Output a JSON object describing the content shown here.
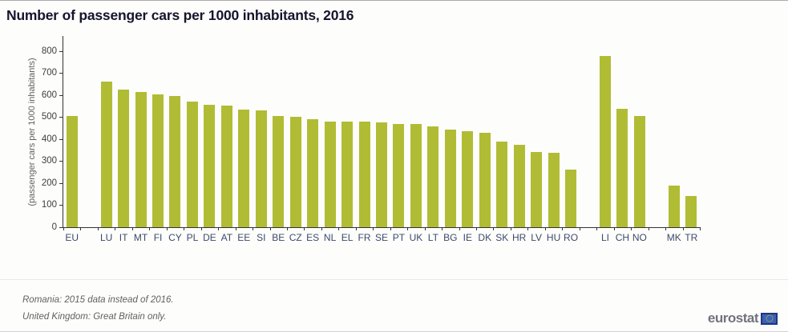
{
  "title": "Number of passenger cars per 1000 inhabitants, 2016",
  "chart_data": {
    "type": "bar",
    "title": "Number of passenger cars per 1000 inhabitants, 2016",
    "xlabel": "",
    "ylabel": "(passenger cars per 1000 inhabitants)",
    "ylim": [
      0,
      800
    ],
    "ytick_interval": 100,
    "yticks": [
      0,
      100,
      200,
      300,
      400,
      500,
      600,
      700,
      800
    ],
    "grid": false,
    "legend": "none",
    "bar_color": "#b1bc35",
    "groups": [
      {
        "name": "eu-aggregate",
        "categories": [
          "EU"
        ],
        "values": [
          505
        ]
      },
      {
        "name": "eu-member-states",
        "categories": [
          "LU",
          "IT",
          "MT",
          "FI",
          "CY",
          "PL",
          "DE",
          "AT",
          "EE",
          "SI",
          "BE",
          "CZ",
          "ES",
          "NL",
          "EL",
          "FR",
          "SE",
          "PT",
          "UK",
          "LT",
          "BG",
          "IE",
          "DK",
          "SK",
          "HR",
          "LV",
          "HU",
          "RO"
        ],
        "values": [
          662,
          625,
          615,
          604,
          595,
          571,
          557,
          552,
          534,
          531,
          505,
          502,
          492,
          481,
          479,
          478,
          477,
          470,
          469,
          456,
          443,
          437,
          430,
          390,
          375,
          341,
          338,
          261
        ]
      },
      {
        "name": "efta-countries",
        "categories": [
          "LI",
          "CH",
          "NO"
        ],
        "values": [
          776,
          539,
          505
        ]
      },
      {
        "name": "candidate-countries",
        "categories": [
          "MK",
          "TR"
        ],
        "values": [
          188,
          142
        ]
      }
    ]
  },
  "footnotes": [
    "Romania: 2015 data instead of 2016.",
    "United Kingdom: Great Britain only."
  ],
  "logo": {
    "text": "eurostat",
    "icon": "eu-flag-icon"
  },
  "colors": {
    "bar": "#b1bc35",
    "axis": "#333333",
    "title": "#15152d",
    "xlabel": "#3c4a68",
    "ytick": "#3d3d3d",
    "muted": "#616161",
    "logo_gray": "#72727e",
    "flag_blue": "#22357f",
    "flag_inner": "#3a62b5",
    "star_yellow": "#f7d117"
  }
}
